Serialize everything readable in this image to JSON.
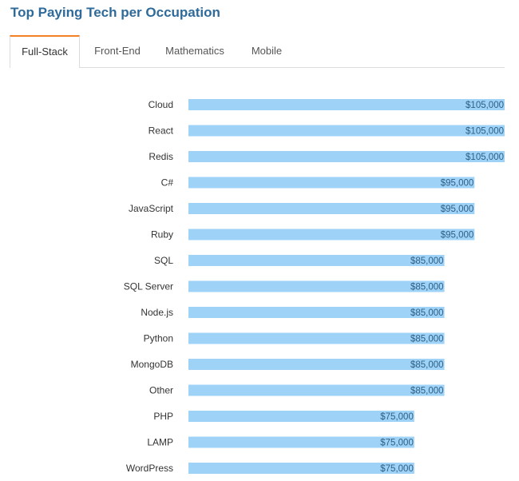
{
  "title": "Top Paying Tech per Occupation",
  "tabs": [
    {
      "label": "Full-Stack",
      "active": true
    },
    {
      "label": "Front-End",
      "active": false
    },
    {
      "label": "Mathematics",
      "active": false
    },
    {
      "label": "Mobile",
      "active": false
    }
  ],
  "colors": {
    "bar": "#9ed3f7",
    "category_label": "#333333",
    "value_label": "#2f5f86",
    "title": "#2f6b9a",
    "active_tab_accent": "#f48024"
  },
  "chart_data": {
    "type": "bar",
    "orientation": "horizontal",
    "title": "",
    "xlabel": "",
    "ylabel": "",
    "xlim": [
      0,
      105000
    ],
    "grid": false,
    "categories": [
      "Cloud",
      "React",
      "Redis",
      "C#",
      "JavaScript",
      "Ruby",
      "SQL",
      "SQL Server",
      "Node.js",
      "Python",
      "MongoDB",
      "Other",
      "PHP",
      "LAMP",
      "WordPress"
    ],
    "values": [
      105000,
      105000,
      105000,
      95000,
      95000,
      95000,
      85000,
      85000,
      85000,
      85000,
      85000,
      85000,
      75000,
      75000,
      75000
    ],
    "value_labels": [
      "$105,000",
      "$105,000",
      "$105,000",
      "$95,000",
      "$95,000",
      "$95,000",
      "$85,000",
      "$85,000",
      "$85,000",
      "$85,000",
      "$85,000",
      "$85,000",
      "$75,000",
      "$75,000",
      "$75,000"
    ]
  }
}
